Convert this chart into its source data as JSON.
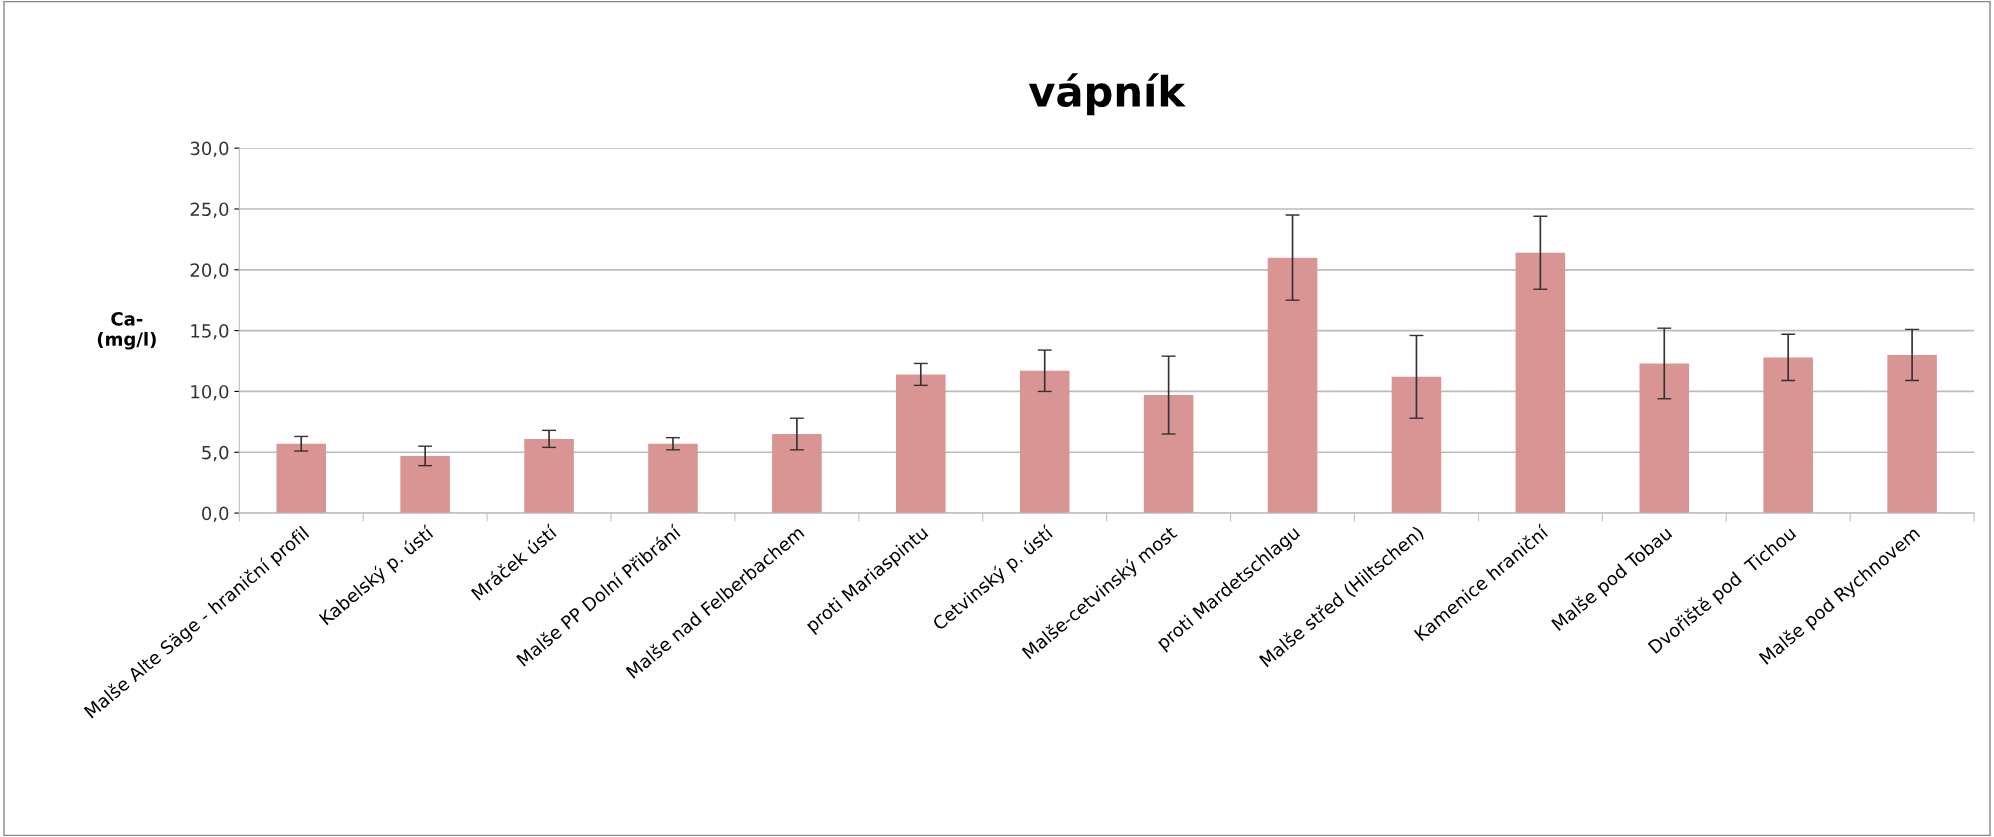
{
  "chart_data": {
    "type": "bar",
    "title": "vápník",
    "ylabel": "Ca-\n(mg/l)",
    "categories": [
      "Malše Alte Säge - hraniční profil",
      "Kabelský p. ústí",
      "Mráček ústí",
      "Malše PP Dolní Přibrání",
      "Malše nad Felberbachem",
      "proti Mariaspintu",
      "Cetvinský p. ústí",
      "Malše-cetvinský most",
      "proti Mardetschlagu",
      "Malše střed (Hiltschen)",
      "Kamenice hraniční",
      "Malše pod Tobau",
      "Dvořiště pod  Tichou",
      "Malše pod Rychnovem"
    ],
    "values": [
      5.7,
      4.7,
      6.1,
      5.7,
      6.5,
      11.4,
      11.7,
      9.7,
      21.0,
      11.2,
      21.4,
      12.3,
      12.8,
      13.0
    ],
    "errors": [
      0.6,
      0.8,
      0.7,
      0.5,
      1.3,
      0.9,
      1.7,
      3.2,
      3.5,
      3.4,
      3.0,
      2.9,
      1.9,
      2.1
    ],
    "color": "#d99594",
    "ylim": [
      0,
      30
    ],
    "yticks": [
      {
        "value": 0,
        "label": "0,0"
      },
      {
        "value": 5,
        "label": "5,0"
      },
      {
        "value": 10,
        "label": "10,0"
      },
      {
        "value": 15,
        "label": "15,0"
      },
      {
        "value": 20,
        "label": "20,0"
      },
      {
        "value": 25,
        "label": "25,0"
      },
      {
        "value": 30,
        "label": "30,0"
      }
    ],
    "grid": "y",
    "legend": false
  }
}
